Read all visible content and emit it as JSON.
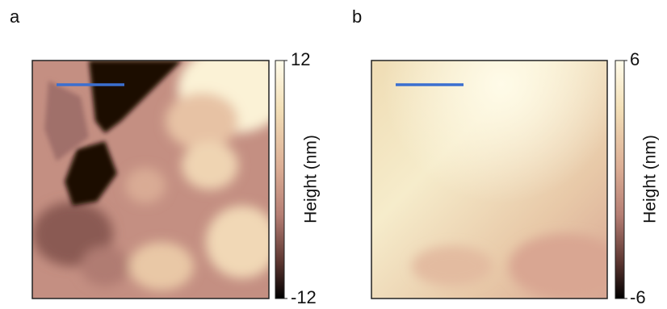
{
  "panels": [
    {
      "label": "a",
      "colorbar": {
        "label": "Height (nm)",
        "ticks": [
          -12,
          12
        ]
      }
    },
    {
      "label": "b",
      "colorbar": {
        "label": "Height (nm)",
        "ticks": [
          -6,
          6
        ]
      }
    }
  ]
}
